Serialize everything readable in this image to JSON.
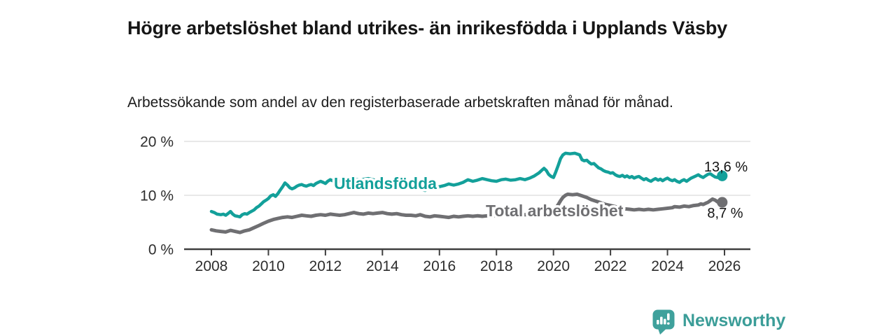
{
  "header": {
    "title": "Högre arbetslöshet bland utrikes- än inrikesfödda i Upplands Väsby",
    "subtitle": "Arbetssökande som andel av den registerbaserade arbetskraften månad för månad."
  },
  "footer": {
    "brand": "Newsworthy"
  },
  "colors": {
    "foreign_born_line": "#13a09a",
    "total_line": "#6f6f72",
    "axis": "#3f3f3f",
    "gridline": "#d9d9d9",
    "brand_teal": "#3fa19c"
  },
  "chart_data": {
    "type": "line",
    "title": "Högre arbetslöshet bland utrikes- än inrikesfödda i Upplands Väsby",
    "subtitle": "Arbetssökande som andel av den registerbaserade arbetskraften månad för månad.",
    "xlabel": "",
    "ylabel": "",
    "grid": "horizontal",
    "legend_position": "inline-on-lines",
    "xlim": [
      2007.05,
      2026.9
    ],
    "ylim": [
      0,
      21
    ],
    "x_ticks": [
      2008,
      2010,
      2012,
      2014,
      2016,
      2018,
      2020,
      2022,
      2024,
      2026
    ],
    "x_tick_labels": [
      "2008",
      "2010",
      "2012",
      "2014",
      "2016",
      "2018",
      "2020",
      "2022",
      "2024",
      "2026"
    ],
    "y_ticks": [
      0,
      10,
      20
    ],
    "y_tick_labels": [
      "0 %",
      "10 %",
      "20 %"
    ],
    "series": [
      {
        "name": "Utlandsfödda",
        "color": "#13a09a",
        "end_value": 13.6,
        "end_label": "13,6 %",
        "points": [
          [
            2008.0,
            7.0
          ],
          [
            2008.1,
            6.8
          ],
          [
            2008.2,
            6.5
          ],
          [
            2008.33,
            6.4
          ],
          [
            2008.42,
            6.5
          ],
          [
            2008.5,
            6.3
          ],
          [
            2008.58,
            6.6
          ],
          [
            2008.67,
            7.0
          ],
          [
            2008.75,
            6.5
          ],
          [
            2008.83,
            6.2
          ],
          [
            2008.92,
            6.1
          ],
          [
            2009.0,
            6.0
          ],
          [
            2009.08,
            6.4
          ],
          [
            2009.17,
            6.6
          ],
          [
            2009.25,
            6.5
          ],
          [
            2009.33,
            6.8
          ],
          [
            2009.5,
            7.3
          ],
          [
            2009.58,
            7.7
          ],
          [
            2009.67,
            8.0
          ],
          [
            2009.75,
            8.4
          ],
          [
            2009.83,
            8.8
          ],
          [
            2009.92,
            9.1
          ],
          [
            2010.0,
            9.4
          ],
          [
            2010.08,
            9.9
          ],
          [
            2010.17,
            10.1
          ],
          [
            2010.25,
            9.8
          ],
          [
            2010.33,
            10.3
          ],
          [
            2010.42,
            11.0
          ],
          [
            2010.5,
            11.6
          ],
          [
            2010.58,
            12.3
          ],
          [
            2010.67,
            11.9
          ],
          [
            2010.75,
            11.4
          ],
          [
            2010.83,
            11.2
          ],
          [
            2010.92,
            11.4
          ],
          [
            2011.0,
            11.7
          ],
          [
            2011.08,
            11.9
          ],
          [
            2011.17,
            12.0
          ],
          [
            2011.25,
            11.8
          ],
          [
            2011.33,
            11.7
          ],
          [
            2011.42,
            11.9
          ],
          [
            2011.5,
            12.0
          ],
          [
            2011.58,
            11.8
          ],
          [
            2011.67,
            12.2
          ],
          [
            2011.75,
            12.4
          ],
          [
            2011.83,
            12.6
          ],
          [
            2011.92,
            12.4
          ],
          [
            2012.0,
            12.2
          ],
          [
            2012.08,
            12.6
          ],
          [
            2012.17,
            12.9
          ],
          [
            2012.25,
            12.7
          ],
          [
            2012.33,
            12.8
          ],
          [
            2012.5,
            12.6
          ],
          [
            2012.67,
            12.8
          ],
          [
            2012.83,
            12.9
          ],
          [
            2013.0,
            13.0
          ],
          [
            2013.25,
            12.9
          ],
          [
            2013.5,
            13.1
          ],
          [
            2013.75,
            12.8
          ],
          [
            2014.0,
            12.7
          ],
          [
            2014.25,
            12.5
          ],
          [
            2014.5,
            12.3
          ],
          [
            2014.75,
            12.1
          ],
          [
            2015.0,
            12.0
          ],
          [
            2015.17,
            11.6
          ],
          [
            2015.33,
            11.2
          ],
          [
            2015.5,
            10.9
          ],
          [
            2015.58,
            11.1
          ],
          [
            2015.67,
            11.4
          ],
          [
            2015.83,
            11.6
          ],
          [
            2015.92,
            11.4
          ],
          [
            2016.0,
            11.6
          ],
          [
            2016.17,
            11.8
          ],
          [
            2016.33,
            12.1
          ],
          [
            2016.5,
            11.9
          ],
          [
            2016.67,
            12.1
          ],
          [
            2016.83,
            12.4
          ],
          [
            2017.0,
            12.9
          ],
          [
            2017.17,
            12.6
          ],
          [
            2017.33,
            12.8
          ],
          [
            2017.5,
            13.1
          ],
          [
            2017.67,
            12.9
          ],
          [
            2017.83,
            12.7
          ],
          [
            2018.0,
            12.6
          ],
          [
            2018.17,
            12.9
          ],
          [
            2018.33,
            13.0
          ],
          [
            2018.5,
            12.8
          ],
          [
            2018.67,
            12.9
          ],
          [
            2018.83,
            13.1
          ],
          [
            2019.0,
            12.9
          ],
          [
            2019.17,
            13.2
          ],
          [
            2019.33,
            13.6
          ],
          [
            2019.5,
            14.2
          ],
          [
            2019.58,
            14.6
          ],
          [
            2019.67,
            15.0
          ],
          [
            2019.75,
            14.6
          ],
          [
            2019.83,
            13.9
          ],
          [
            2019.92,
            13.5
          ],
          [
            2020.0,
            13.3
          ],
          [
            2020.08,
            14.3
          ],
          [
            2020.17,
            15.6
          ],
          [
            2020.25,
            16.8
          ],
          [
            2020.33,
            17.5
          ],
          [
            2020.42,
            17.8
          ],
          [
            2020.58,
            17.7
          ],
          [
            2020.75,
            17.8
          ],
          [
            2020.92,
            17.5
          ],
          [
            2021.0,
            16.6
          ],
          [
            2021.08,
            16.4
          ],
          [
            2021.17,
            16.5
          ],
          [
            2021.25,
            16.1
          ],
          [
            2021.33,
            15.8
          ],
          [
            2021.42,
            15.9
          ],
          [
            2021.5,
            15.5
          ],
          [
            2021.58,
            15.1
          ],
          [
            2021.67,
            14.9
          ],
          [
            2021.75,
            14.6
          ],
          [
            2021.83,
            14.4
          ],
          [
            2021.92,
            14.3
          ],
          [
            2022.0,
            14.1
          ],
          [
            2022.08,
            14.2
          ],
          [
            2022.17,
            13.8
          ],
          [
            2022.25,
            13.6
          ],
          [
            2022.33,
            13.5
          ],
          [
            2022.42,
            13.7
          ],
          [
            2022.5,
            13.4
          ],
          [
            2022.58,
            13.6
          ],
          [
            2022.67,
            13.3
          ],
          [
            2022.75,
            13.5
          ],
          [
            2022.83,
            13.2
          ],
          [
            2022.92,
            13.4
          ],
          [
            2023.0,
            13.5
          ],
          [
            2023.08,
            13.2
          ],
          [
            2023.17,
            12.9
          ],
          [
            2023.25,
            13.1
          ],
          [
            2023.33,
            12.8
          ],
          [
            2023.42,
            12.6
          ],
          [
            2023.5,
            12.9
          ],
          [
            2023.58,
            13.1
          ],
          [
            2023.67,
            12.8
          ],
          [
            2023.75,
            13.0
          ],
          [
            2023.83,
            12.7
          ],
          [
            2023.92,
            13.0
          ],
          [
            2024.0,
            13.2
          ],
          [
            2024.08,
            12.9
          ],
          [
            2024.17,
            12.7
          ],
          [
            2024.25,
            12.9
          ],
          [
            2024.33,
            12.6
          ],
          [
            2024.42,
            12.4
          ],
          [
            2024.5,
            12.7
          ],
          [
            2024.58,
            12.9
          ],
          [
            2024.67,
            12.6
          ],
          [
            2024.75,
            12.9
          ],
          [
            2024.83,
            13.2
          ],
          [
            2024.92,
            13.4
          ],
          [
            2025.0,
            13.6
          ],
          [
            2025.08,
            13.8
          ],
          [
            2025.17,
            13.5
          ],
          [
            2025.25,
            13.3
          ],
          [
            2025.33,
            13.6
          ],
          [
            2025.42,
            13.9
          ],
          [
            2025.5,
            14.0
          ],
          [
            2025.58,
            13.7
          ],
          [
            2025.67,
            13.4
          ],
          [
            2025.75,
            13.3
          ],
          [
            2025.83,
            13.5
          ],
          [
            2025.92,
            13.6
          ]
        ]
      },
      {
        "name": "Total arbetslöshet",
        "color": "#6f6f72",
        "end_value": 8.7,
        "end_label": "8,7 %",
        "points": [
          [
            2008.0,
            3.6
          ],
          [
            2008.17,
            3.4
          ],
          [
            2008.33,
            3.3
          ],
          [
            2008.5,
            3.2
          ],
          [
            2008.67,
            3.5
          ],
          [
            2008.83,
            3.3
          ],
          [
            2009.0,
            3.1
          ],
          [
            2009.17,
            3.4
          ],
          [
            2009.33,
            3.6
          ],
          [
            2009.5,
            4.0
          ],
          [
            2009.67,
            4.4
          ],
          [
            2009.83,
            4.8
          ],
          [
            2010.0,
            5.2
          ],
          [
            2010.17,
            5.5
          ],
          [
            2010.33,
            5.7
          ],
          [
            2010.5,
            5.9
          ],
          [
            2010.67,
            6.0
          ],
          [
            2010.83,
            5.9
          ],
          [
            2011.0,
            6.1
          ],
          [
            2011.17,
            6.3
          ],
          [
            2011.33,
            6.2
          ],
          [
            2011.5,
            6.1
          ],
          [
            2011.67,
            6.3
          ],
          [
            2011.83,
            6.4
          ],
          [
            2012.0,
            6.3
          ],
          [
            2012.17,
            6.5
          ],
          [
            2012.33,
            6.4
          ],
          [
            2012.5,
            6.3
          ],
          [
            2012.67,
            6.4
          ],
          [
            2012.83,
            6.6
          ],
          [
            2013.0,
            6.8
          ],
          [
            2013.17,
            6.6
          ],
          [
            2013.33,
            6.5
          ],
          [
            2013.5,
            6.7
          ],
          [
            2013.67,
            6.6
          ],
          [
            2013.83,
            6.7
          ],
          [
            2014.0,
            6.8
          ],
          [
            2014.17,
            6.6
          ],
          [
            2014.33,
            6.5
          ],
          [
            2014.5,
            6.6
          ],
          [
            2014.67,
            6.4
          ],
          [
            2014.83,
            6.3
          ],
          [
            2015.0,
            6.3
          ],
          [
            2015.17,
            6.2
          ],
          [
            2015.33,
            6.4
          ],
          [
            2015.5,
            6.1
          ],
          [
            2015.67,
            6.0
          ],
          [
            2015.83,
            6.2
          ],
          [
            2016.0,
            6.1
          ],
          [
            2016.17,
            6.0
          ],
          [
            2016.33,
            5.9
          ],
          [
            2016.5,
            6.1
          ],
          [
            2016.67,
            6.0
          ],
          [
            2016.83,
            6.1
          ],
          [
            2017.0,
            6.2
          ],
          [
            2017.17,
            6.1
          ],
          [
            2017.33,
            6.2
          ],
          [
            2017.5,
            6.1
          ],
          [
            2017.67,
            6.2
          ],
          [
            2017.83,
            6.3
          ],
          [
            2018.0,
            6.2
          ],
          [
            2018.25,
            6.3
          ],
          [
            2018.5,
            6.3
          ],
          [
            2018.75,
            6.4
          ],
          [
            2019.0,
            6.4
          ],
          [
            2019.25,
            6.5
          ],
          [
            2019.5,
            6.6
          ],
          [
            2019.75,
            6.8
          ],
          [
            2020.0,
            7.1
          ],
          [
            2020.08,
            7.6
          ],
          [
            2020.17,
            8.3
          ],
          [
            2020.25,
            9.0
          ],
          [
            2020.33,
            9.6
          ],
          [
            2020.42,
            10.0
          ],
          [
            2020.5,
            10.2
          ],
          [
            2020.67,
            10.1
          ],
          [
            2020.83,
            10.2
          ],
          [
            2021.0,
            9.9
          ],
          [
            2021.17,
            9.6
          ],
          [
            2021.33,
            9.2
          ],
          [
            2021.5,
            8.9
          ],
          [
            2021.67,
            8.6
          ],
          [
            2021.83,
            8.3
          ],
          [
            2022.0,
            8.1
          ],
          [
            2022.17,
            7.9
          ],
          [
            2022.33,
            7.7
          ],
          [
            2022.5,
            7.5
          ],
          [
            2022.67,
            7.4
          ],
          [
            2022.83,
            7.3
          ],
          [
            2023.0,
            7.4
          ],
          [
            2023.17,
            7.3
          ],
          [
            2023.33,
            7.4
          ],
          [
            2023.5,
            7.3
          ],
          [
            2023.67,
            7.4
          ],
          [
            2023.83,
            7.5
          ],
          [
            2024.0,
            7.6
          ],
          [
            2024.17,
            7.7
          ],
          [
            2024.25,
            7.9
          ],
          [
            2024.42,
            7.8
          ],
          [
            2024.58,
            8.0
          ],
          [
            2024.75,
            7.9
          ],
          [
            2024.92,
            8.1
          ],
          [
            2025.08,
            8.2
          ],
          [
            2025.17,
            8.4
          ],
          [
            2025.25,
            8.3
          ],
          [
            2025.33,
            8.5
          ],
          [
            2025.42,
            8.7
          ],
          [
            2025.5,
            9.0
          ],
          [
            2025.58,
            9.3
          ],
          [
            2025.67,
            9.1
          ],
          [
            2025.75,
            8.8
          ],
          [
            2025.83,
            8.6
          ],
          [
            2025.92,
            8.7
          ]
        ]
      }
    ]
  }
}
